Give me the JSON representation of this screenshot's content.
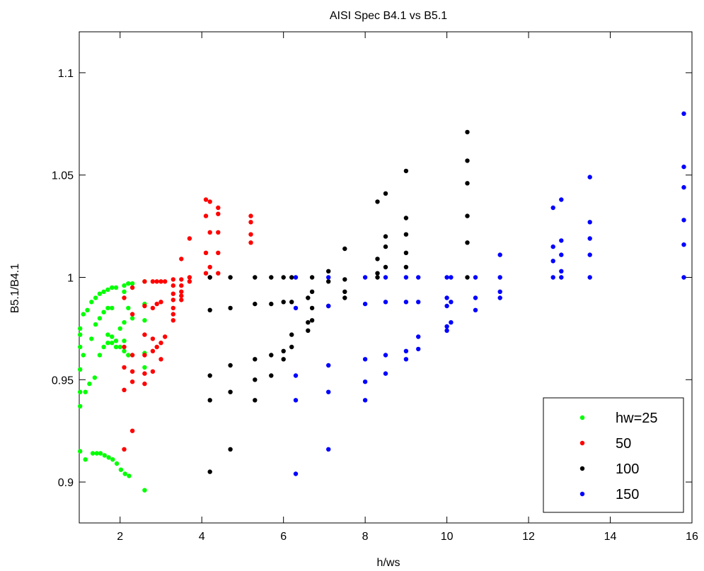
{
  "chart_data": {
    "type": "scatter",
    "title": "AISI Spec B4.1 vs B5.1",
    "xlabel": "h/ws",
    "ylabel": "B5.1/B4.1",
    "xlim": [
      1,
      16
    ],
    "ylim": [
      0.88,
      1.12
    ],
    "xticks": [
      2,
      4,
      6,
      8,
      10,
      12,
      14,
      16
    ],
    "yticks": [
      0.9,
      0.95,
      1,
      1.05,
      1.1
    ],
    "xtick_labels": [
      "2",
      "4",
      "6",
      "8",
      "10",
      "12",
      "14",
      "16"
    ],
    "ytick_labels": [
      "0.9",
      "0.95",
      "1",
      "1.05",
      "1.1"
    ],
    "grid": false,
    "box": true,
    "legend_position": "bottom-right",
    "series": [
      {
        "name": "hw=25",
        "color": "#00ff00",
        "points": [
          [
            1.02,
            0.975
          ],
          [
            1.02,
            0.972
          ],
          [
            1.02,
            0.966
          ],
          [
            1.02,
            0.955
          ],
          [
            1.02,
            0.944
          ],
          [
            1.02,
            0.937
          ],
          [
            1.02,
            0.915
          ],
          [
            1.1,
            0.982
          ],
          [
            1.1,
            0.962
          ],
          [
            1.15,
            0.944
          ],
          [
            1.15,
            0.911
          ],
          [
            1.2,
            0.984
          ],
          [
            1.25,
            0.948
          ],
          [
            1.3,
            0.988
          ],
          [
            1.3,
            0.97
          ],
          [
            1.33,
            0.914
          ],
          [
            1.38,
            0.951
          ],
          [
            1.4,
            0.99
          ],
          [
            1.4,
            0.977
          ],
          [
            1.43,
            0.914
          ],
          [
            1.5,
            0.992
          ],
          [
            1.5,
            0.98
          ],
          [
            1.5,
            0.962
          ],
          [
            1.52,
            0.914
          ],
          [
            1.6,
            0.993
          ],
          [
            1.6,
            0.983
          ],
          [
            1.6,
            0.966
          ],
          [
            1.62,
            0.913
          ],
          [
            1.7,
            0.994
          ],
          [
            1.7,
            0.985
          ],
          [
            1.7,
            0.972
          ],
          [
            1.7,
            0.968
          ],
          [
            1.72,
            0.912
          ],
          [
            1.8,
            0.995
          ],
          [
            1.8,
            0.985
          ],
          [
            1.8,
            0.971
          ],
          [
            1.8,
            0.968
          ],
          [
            1.82,
            0.911
          ],
          [
            1.9,
            0.995
          ],
          [
            1.9,
            0.969
          ],
          [
            1.9,
            0.966
          ],
          [
            1.92,
            0.909
          ],
          [
            2.0,
            0.975
          ],
          [
            2.0,
            0.966
          ],
          [
            2.02,
            0.906
          ],
          [
            2.1,
            0.996
          ],
          [
            2.1,
            0.993
          ],
          [
            2.1,
            0.978
          ],
          [
            2.1,
            0.969
          ],
          [
            2.1,
            0.964
          ],
          [
            2.12,
            0.904
          ],
          [
            2.2,
            0.997
          ],
          [
            2.2,
            0.985
          ],
          [
            2.2,
            0.962
          ],
          [
            2.22,
            0.903
          ],
          [
            2.3,
            0.997
          ],
          [
            2.3,
            0.98
          ],
          [
            2.6,
            0.998
          ],
          [
            2.6,
            0.987
          ],
          [
            2.6,
            0.979
          ],
          [
            2.6,
            0.963
          ],
          [
            2.6,
            0.956
          ],
          [
            2.6,
            0.896
          ]
        ]
      },
      {
        "name": "50",
        "color": "#ff0000",
        "points": [
          [
            2.1,
            0.99
          ],
          [
            2.1,
            0.966
          ],
          [
            2.1,
            0.956
          ],
          [
            2.1,
            0.945
          ],
          [
            2.1,
            0.916
          ],
          [
            2.3,
            0.995
          ],
          [
            2.3,
            0.982
          ],
          [
            2.3,
            0.962
          ],
          [
            2.3,
            0.954
          ],
          [
            2.3,
            0.949
          ],
          [
            2.3,
            0.925
          ],
          [
            2.6,
            0.998
          ],
          [
            2.6,
            0.986
          ],
          [
            2.6,
            0.972
          ],
          [
            2.6,
            0.962
          ],
          [
            2.6,
            0.953
          ],
          [
            2.6,
            0.948
          ],
          [
            2.8,
            0.998
          ],
          [
            2.8,
            0.985
          ],
          [
            2.8,
            0.97
          ],
          [
            2.8,
            0.964
          ],
          [
            2.8,
            0.954
          ],
          [
            2.9,
            0.998
          ],
          [
            2.9,
            0.987
          ],
          [
            2.9,
            0.966
          ],
          [
            3.0,
            0.998
          ],
          [
            3.0,
            0.988
          ],
          [
            3.0,
            0.968
          ],
          [
            3.0,
            0.96
          ],
          [
            3.1,
            0.998
          ],
          [
            3.1,
            0.971
          ],
          [
            3.3,
            0.999
          ],
          [
            3.3,
            0.996
          ],
          [
            3.3,
            0.992
          ],
          [
            3.3,
            0.989
          ],
          [
            3.3,
            0.985
          ],
          [
            3.3,
            0.982
          ],
          [
            3.3,
            0.979
          ],
          [
            3.5,
            0.999
          ],
          [
            3.5,
            0.996
          ],
          [
            3.5,
            0.993
          ],
          [
            3.5,
            0.991
          ],
          [
            3.5,
            0.989
          ],
          [
            3.5,
            1.009
          ],
          [
            3.7,
            1.0
          ],
          [
            3.7,
            0.998
          ],
          [
            3.7,
            1.019
          ],
          [
            4.1,
            1.038
          ],
          [
            4.1,
            1.03
          ],
          [
            4.1,
            1.012
          ],
          [
            4.1,
            1.002
          ],
          [
            4.2,
            1.037
          ],
          [
            4.2,
            1.022
          ],
          [
            4.2,
            1.005
          ],
          [
            4.2,
            1.0
          ],
          [
            4.4,
            1.034
          ],
          [
            4.4,
            1.031
          ],
          [
            4.4,
            1.022
          ],
          [
            4.4,
            1.012
          ],
          [
            4.4,
            1.002
          ],
          [
            5.2,
            1.03
          ],
          [
            5.2,
            1.027
          ],
          [
            5.2,
            1.021
          ],
          [
            5.2,
            1.017
          ]
        ]
      },
      {
        "name": "100",
        "color": "#000000",
        "points": [
          [
            4.2,
            1.0
          ],
          [
            4.2,
            0.984
          ],
          [
            4.2,
            0.952
          ],
          [
            4.2,
            0.94
          ],
          [
            4.2,
            0.905
          ],
          [
            4.7,
            1.0
          ],
          [
            4.7,
            0.985
          ],
          [
            4.7,
            0.957
          ],
          [
            4.7,
            0.944
          ],
          [
            4.7,
            0.916
          ],
          [
            5.3,
            1.0
          ],
          [
            5.3,
            0.987
          ],
          [
            5.3,
            0.96
          ],
          [
            5.3,
            0.95
          ],
          [
            5.3,
            0.94
          ],
          [
            5.7,
            1.0
          ],
          [
            5.7,
            0.987
          ],
          [
            5.7,
            0.962
          ],
          [
            5.7,
            0.952
          ],
          [
            6.0,
            1.0
          ],
          [
            6.0,
            0.988
          ],
          [
            6.0,
            0.964
          ],
          [
            6.0,
            0.96
          ],
          [
            6.2,
            1.0
          ],
          [
            6.2,
            0.988
          ],
          [
            6.2,
            0.972
          ],
          [
            6.2,
            0.966
          ],
          [
            6.6,
            0.99
          ],
          [
            6.6,
            0.978
          ],
          [
            6.6,
            0.974
          ],
          [
            6.7,
            1.0
          ],
          [
            6.7,
            0.993
          ],
          [
            6.7,
            0.985
          ],
          [
            6.7,
            0.979
          ],
          [
            7.1,
            1.003
          ],
          [
            7.1,
            0.998
          ],
          [
            7.1,
            0.986
          ],
          [
            7.5,
            1.014
          ],
          [
            7.5,
            0.999
          ],
          [
            7.5,
            0.993
          ],
          [
            7.5,
            0.99
          ],
          [
            8.3,
            1.037
          ],
          [
            8.3,
            1.009
          ],
          [
            8.3,
            1.002
          ],
          [
            8.3,
            1.0
          ],
          [
            8.5,
            1.041
          ],
          [
            8.5,
            1.02
          ],
          [
            8.5,
            1.015
          ],
          [
            8.5,
            1.005
          ],
          [
            9.0,
            1.052
          ],
          [
            9.0,
            1.029
          ],
          [
            9.0,
            1.021
          ],
          [
            9.0,
            1.012
          ],
          [
            9.0,
            1.005
          ],
          [
            10.5,
            1.071
          ],
          [
            10.5,
            1.057
          ],
          [
            10.5,
            1.046
          ],
          [
            10.5,
            1.03
          ],
          [
            10.5,
            1.017
          ],
          [
            10.5,
            1.0
          ]
        ]
      },
      {
        "name": "150",
        "color": "#0000ff",
        "points": [
          [
            6.3,
            1.0
          ],
          [
            6.3,
            0.985
          ],
          [
            6.3,
            0.952
          ],
          [
            6.3,
            0.94
          ],
          [
            6.3,
            0.904
          ],
          [
            7.1,
            1.0
          ],
          [
            7.1,
            0.986
          ],
          [
            7.1,
            0.957
          ],
          [
            7.1,
            0.944
          ],
          [
            7.1,
            0.916
          ],
          [
            8.0,
            1.0
          ],
          [
            8.0,
            0.987
          ],
          [
            8.0,
            0.96
          ],
          [
            8.0,
            0.949
          ],
          [
            8.0,
            0.94
          ],
          [
            8.5,
            1.0
          ],
          [
            8.5,
            0.988
          ],
          [
            8.5,
            0.962
          ],
          [
            8.5,
            0.953
          ],
          [
            9.0,
            1.0
          ],
          [
            9.0,
            0.988
          ],
          [
            9.0,
            0.964
          ],
          [
            9.0,
            0.96
          ],
          [
            9.3,
            1.0
          ],
          [
            9.3,
            0.988
          ],
          [
            9.3,
            0.971
          ],
          [
            9.3,
            0.965
          ],
          [
            10.0,
            1.0
          ],
          [
            10.0,
            0.99
          ],
          [
            10.0,
            0.986
          ],
          [
            10.0,
            0.976
          ],
          [
            10.0,
            0.974
          ],
          [
            10.1,
            1.0
          ],
          [
            10.1,
            0.988
          ],
          [
            10.1,
            0.978
          ],
          [
            10.7,
            1.0
          ],
          [
            10.7,
            0.99
          ],
          [
            10.7,
            0.984
          ],
          [
            11.3,
            1.011
          ],
          [
            11.3,
            1.0
          ],
          [
            11.3,
            0.993
          ],
          [
            11.3,
            0.99
          ],
          [
            12.6,
            1.034
          ],
          [
            12.6,
            1.015
          ],
          [
            12.6,
            1.008
          ],
          [
            12.6,
            1.0
          ],
          [
            12.8,
            1.038
          ],
          [
            12.8,
            1.018
          ],
          [
            12.8,
            1.011
          ],
          [
            12.8,
            1.003
          ],
          [
            12.8,
            1.0
          ],
          [
            13.5,
            1.049
          ],
          [
            13.5,
            1.027
          ],
          [
            13.5,
            1.019
          ],
          [
            13.5,
            1.011
          ],
          [
            13.5,
            1.0
          ],
          [
            15.8,
            1.08
          ],
          [
            15.8,
            1.054
          ],
          [
            15.8,
            1.044
          ],
          [
            15.8,
            1.028
          ],
          [
            15.8,
            1.016
          ],
          [
            15.8,
            1.0
          ]
        ]
      }
    ]
  }
}
